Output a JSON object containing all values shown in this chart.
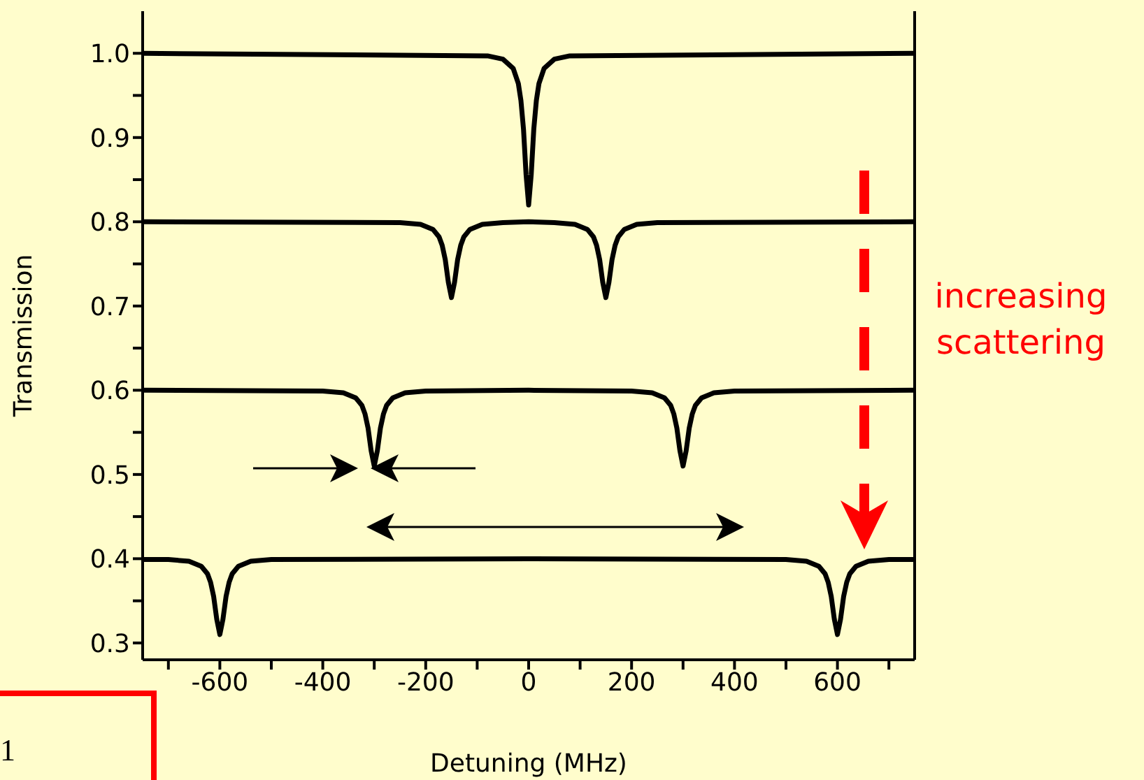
{
  "chart_data": {
    "type": "line",
    "xlabel": "Detuning (MHz)",
    "ylabel": "Transmission",
    "xlim": [
      -750,
      750
    ],
    "ylim": [
      0.28,
      1.05
    ],
    "xticks": [
      {
        "value": -700,
        "label": null
      },
      -600,
      {
        "value": -500,
        "label": null
      },
      -400,
      {
        "value": -300,
        "label": null
      },
      -200,
      {
        "value": -100,
        "label": null
      },
      0,
      {
        "value": 100,
        "label": null
      },
      200,
      {
        "value": 300,
        "label": null
      },
      400,
      {
        "value": 500,
        "label": null
      },
      600,
      {
        "value": 700,
        "label": null
      }
    ],
    "yticks": [
      0.3,
      {
        "value": 0.35,
        "label": null
      },
      0.4,
      {
        "value": 0.45,
        "label": null
      },
      0.5,
      {
        "value": 0.55,
        "label": null
      },
      0.6,
      {
        "value": 0.65,
        "label": null
      },
      0.7,
      {
        "value": 0.75,
        "label": null
      },
      0.8,
      {
        "value": 0.85,
        "label": null
      },
      0.9,
      {
        "value": 0.95,
        "label": null
      },
      {
        "value": 1,
        "label": "1.0"
      }
    ],
    "marker": "none",
    "line_style": "solid",
    "grid": false,
    "annotations": [
      "increasing scattering",
      "1"
    ],
    "series": [
      {
        "color": "#000000",
        "x": [
          -750,
          -80,
          -50,
          -30,
          -20,
          -15,
          -10,
          -5,
          0,
          5,
          10,
          15,
          20,
          30,
          50,
          80,
          750
        ],
        "values": [
          1,
          0.997,
          0.993,
          0.982,
          0.964,
          0.944,
          0.91,
          0.856,
          0.82,
          0.856,
          0.91,
          0.944,
          0.964,
          0.982,
          0.993,
          0.997,
          1
        ]
      },
      {
        "color": "#000000",
        "x": [
          -750,
          -250,
          -210,
          -186,
          -174,
          -168,
          -162,
          -156,
          -150,
          -144,
          -138,
          -132,
          -126,
          -114,
          -90,
          -50,
          0,
          50,
          90,
          114,
          126,
          132,
          138,
          144,
          150,
          156,
          162,
          168,
          174,
          186,
          210,
          250,
          750
        ],
        "values": [
          0.8,
          0.799,
          0.797,
          0.791,
          0.782,
          0.772,
          0.755,
          0.728,
          0.71,
          0.728,
          0.755,
          0.772,
          0.782,
          0.791,
          0.797,
          0.799,
          0.8,
          0.799,
          0.797,
          0.791,
          0.782,
          0.772,
          0.755,
          0.728,
          0.71,
          0.728,
          0.755,
          0.772,
          0.782,
          0.791,
          0.797,
          0.799,
          0.8
        ]
      },
      {
        "color": "#000000",
        "x": [
          -750,
          -400,
          -360,
          -336,
          -324,
          -318,
          -312,
          -306,
          -300,
          -294,
          -288,
          -282,
          -276,
          -264,
          -240,
          -200,
          0,
          200,
          240,
          264,
          276,
          282,
          288,
          294,
          300,
          306,
          312,
          318,
          324,
          336,
          360,
          400,
          750
        ],
        "values": [
          0.6,
          0.599,
          0.597,
          0.591,
          0.582,
          0.572,
          0.555,
          0.528,
          0.51,
          0.528,
          0.555,
          0.572,
          0.582,
          0.591,
          0.597,
          0.599,
          0.6,
          0.599,
          0.597,
          0.591,
          0.582,
          0.572,
          0.555,
          0.528,
          0.51,
          0.528,
          0.555,
          0.572,
          0.582,
          0.591,
          0.597,
          0.599,
          0.6
        ]
      },
      {
        "color": "#000000",
        "x": [
          -750,
          -700,
          -660,
          -636,
          -624,
          -618,
          -612,
          -606,
          -600,
          -594,
          -588,
          -582,
          -576,
          -564,
          -540,
          -500,
          0,
          500,
          540,
          564,
          576,
          582,
          588,
          594,
          600,
          606,
          612,
          618,
          624,
          636,
          660,
          700,
          750
        ],
        "values": [
          0.399,
          0.399,
          0.397,
          0.391,
          0.382,
          0.372,
          0.355,
          0.328,
          0.31,
          0.328,
          0.355,
          0.372,
          0.382,
          0.391,
          0.397,
          0.399,
          0.4,
          0.399,
          0.397,
          0.391,
          0.382,
          0.372,
          0.355,
          0.328,
          0.31,
          0.328,
          0.355,
          0.372,
          0.382,
          0.391,
          0.397,
          0.399,
          0.399
        ]
      }
    ]
  }
}
